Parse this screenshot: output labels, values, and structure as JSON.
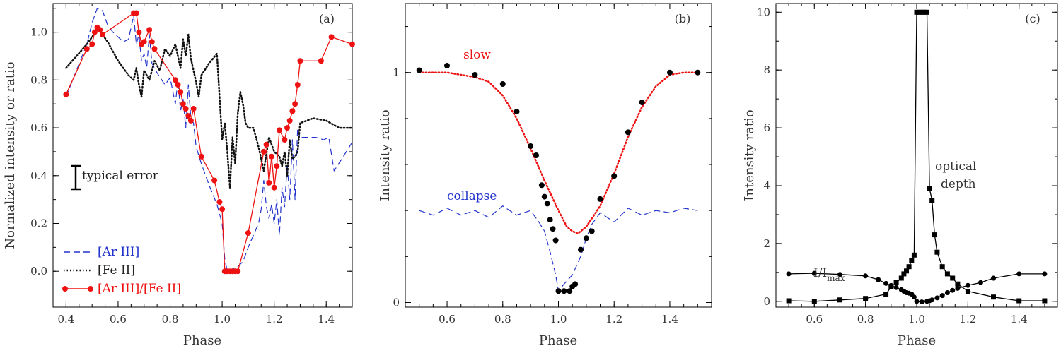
{
  "chart_data": [
    {
      "panel": "(a)",
      "type": "line",
      "xlabel": "Phase",
      "ylabel": "Normalized intensity or ratio",
      "xlim": [
        0.35,
        1.5
      ],
      "ylim": [
        -0.15,
        1.12
      ],
      "xticks": [
        0.4,
        0.6,
        0.8,
        1.0,
        1.2,
        1.4
      ],
      "xtick_labels": [
        "0.4",
        "0.6",
        "0.8",
        "1.0",
        "1.2",
        "1.4"
      ],
      "yticks": [
        0.0,
        0.2,
        0.4,
        0.6,
        0.8,
        1.0
      ],
      "ytick_labels": [
        "0.0",
        "0.2",
        "0.4",
        "0.6",
        "0.8",
        "1.0"
      ],
      "annotation": "typical error",
      "error_bar": {
        "x": 0.44,
        "y": 0.4,
        "half_height": 0.045
      },
      "legend_position": "bottom-left",
      "series": [
        {
          "name": "[Ar III]",
          "style": "dashed",
          "color": "#2233cc",
          "x": [
            0.4,
            0.44,
            0.48,
            0.5,
            0.52,
            0.54,
            0.56,
            0.58,
            0.6,
            0.62,
            0.64,
            0.66,
            0.67,
            0.68,
            0.69,
            0.7,
            0.71,
            0.72,
            0.73,
            0.75,
            0.78,
            0.8,
            0.82,
            0.83,
            0.84,
            0.85,
            0.86,
            0.87,
            0.88,
            0.89,
            0.9,
            0.92,
            0.95,
            0.98,
            1.0,
            1.01,
            1.02,
            1.04,
            1.06,
            1.08,
            1.1,
            1.12,
            1.14,
            1.15,
            1.16,
            1.17,
            1.18,
            1.19,
            1.2,
            1.21,
            1.22,
            1.23,
            1.24,
            1.25,
            1.26,
            1.27,
            1.28,
            1.29,
            1.3,
            1.33,
            1.36,
            1.39,
            1.41,
            1.43,
            1.46,
            1.5
          ],
          "y": [
            0.73,
            0.84,
            0.95,
            1.04,
            1.1,
            1.09,
            1.03,
            1.0,
            0.98,
            0.96,
            0.97,
            1.07,
            0.95,
            0.99,
            0.88,
            0.91,
            0.85,
            0.99,
            0.87,
            0.83,
            0.78,
            0.81,
            0.7,
            0.8,
            0.67,
            0.72,
            0.6,
            0.78,
            0.64,
            0.62,
            0.52,
            0.45,
            0.36,
            0.28,
            0.2,
            0.05,
            0.0,
            0.01,
            0.02,
            0.04,
            0.1,
            0.15,
            0.2,
            0.26,
            0.38,
            0.27,
            0.22,
            0.28,
            0.2,
            0.3,
            0.15,
            0.35,
            0.27,
            0.45,
            0.3,
            0.55,
            0.3,
            0.6,
            0.56,
            0.56,
            0.56,
            0.55,
            0.56,
            0.42,
            0.47,
            0.54
          ]
        },
        {
          "name": "[Fe II]",
          "style": "dotted",
          "color": "#111111",
          "x": [
            0.4,
            0.44,
            0.48,
            0.5,
            0.52,
            0.54,
            0.56,
            0.58,
            0.6,
            0.62,
            0.64,
            0.66,
            0.67,
            0.68,
            0.69,
            0.7,
            0.72,
            0.74,
            0.76,
            0.78,
            0.8,
            0.82,
            0.84,
            0.85,
            0.86,
            0.87,
            0.88,
            0.89,
            0.9,
            0.91,
            0.92,
            0.95,
            0.98,
            1.0,
            1.01,
            1.02,
            1.03,
            1.04,
            1.05,
            1.06,
            1.07,
            1.08,
            1.09,
            1.1,
            1.12,
            1.14,
            1.16,
            1.18,
            1.2,
            1.22,
            1.23,
            1.24,
            1.25,
            1.26,
            1.27,
            1.28,
            1.29,
            1.3,
            1.35,
            1.4,
            1.45,
            1.5
          ],
          "y": [
            0.85,
            0.9,
            0.95,
            0.98,
            1.01,
            0.99,
            0.96,
            0.92,
            0.88,
            0.85,
            0.82,
            0.8,
            0.85,
            0.78,
            0.73,
            0.84,
            0.8,
            0.88,
            0.84,
            0.93,
            0.9,
            0.95,
            0.85,
            0.97,
            0.9,
            0.99,
            0.89,
            0.84,
            0.79,
            0.73,
            0.82,
            0.87,
            0.91,
            0.55,
            0.62,
            0.5,
            0.35,
            0.56,
            0.45,
            0.66,
            0.75,
            0.7,
            0.62,
            0.6,
            0.6,
            0.52,
            0.42,
            0.56,
            0.5,
            0.48,
            0.44,
            0.5,
            0.4,
            0.55,
            0.47,
            0.48,
            0.5,
            0.62,
            0.64,
            0.63,
            0.6,
            0.6
          ]
        },
        {
          "name": "[Ar III]/[Fe II]",
          "style": "solid-circles",
          "color": "#ee1111",
          "x": [
            0.4,
            0.48,
            0.5,
            0.51,
            0.52,
            0.53,
            0.54,
            0.66,
            0.67,
            0.68,
            0.69,
            0.7,
            0.72,
            0.73,
            0.74,
            0.82,
            0.83,
            0.84,
            0.85,
            0.86,
            0.87,
            0.88,
            0.89,
            0.92,
            0.97,
            0.99,
            1.0,
            1.01,
            1.02,
            1.03,
            1.04,
            1.05,
            1.06,
            1.1,
            1.16,
            1.17,
            1.18,
            1.19,
            1.2,
            1.21,
            1.22,
            1.24,
            1.25,
            1.26,
            1.27,
            1.28,
            1.29,
            1.3,
            1.38,
            1.42,
            1.5
          ],
          "y": [
            0.74,
            0.93,
            0.95,
            1.0,
            1.02,
            1.01,
            0.99,
            1.08,
            1.08,
            1.0,
            0.95,
            0.96,
            1.01,
            0.96,
            0.93,
            0.8,
            0.78,
            0.75,
            0.7,
            0.68,
            0.65,
            0.63,
            0.68,
            0.48,
            0.38,
            0.29,
            0.26,
            0.0,
            0.0,
            0.0,
            0.0,
            0.0,
            0.0,
            0.16,
            0.5,
            0.53,
            0.37,
            0.48,
            0.35,
            0.44,
            0.59,
            0.55,
            0.6,
            0.63,
            0.67,
            0.7,
            0.78,
            0.88,
            0.88,
            0.98,
            0.95
          ]
        }
      ]
    },
    {
      "panel": "(b)",
      "type": "line",
      "xlabel": "Phase",
      "ylabel": "Intensity ratio",
      "xlim": [
        0.45,
        1.55
      ],
      "ylim": [
        -0.02,
        1.3
      ],
      "xticks": [
        0.6,
        0.8,
        1.0,
        1.2,
        1.4
      ],
      "xtick_labels": [
        "0.6",
        "0.8",
        "1.0",
        "1.2",
        "1.4"
      ],
      "yticks": [
        0,
        1
      ],
      "ytick_labels": [
        "0",
        "1"
      ],
      "series": [
        {
          "name": "slow",
          "style": "dotted",
          "color": "#ee1111",
          "x": [
            0.5,
            0.55,
            0.6,
            0.65,
            0.7,
            0.75,
            0.8,
            0.85,
            0.9,
            0.95,
            1.0,
            1.03,
            1.05,
            1.07,
            1.1,
            1.15,
            1.2,
            1.25,
            1.3,
            1.35,
            1.4,
            1.45,
            1.5
          ],
          "y": [
            1.0,
            1.0,
            1.0,
            0.99,
            0.98,
            0.96,
            0.9,
            0.8,
            0.67,
            0.53,
            0.4,
            0.33,
            0.31,
            0.3,
            0.33,
            0.42,
            0.56,
            0.72,
            0.85,
            0.94,
            0.99,
            1.0,
            1.0
          ]
        },
        {
          "name": "collapse",
          "style": "dashed",
          "color": "#2233cc",
          "x": [
            0.5,
            0.55,
            0.6,
            0.65,
            0.7,
            0.75,
            0.8,
            0.85,
            0.9,
            0.93,
            0.95,
            0.97,
            0.99,
            1.0,
            1.02,
            1.05,
            1.08,
            1.1,
            1.12,
            1.15,
            1.2,
            1.25,
            1.3,
            1.35,
            1.4,
            1.45,
            1.5
          ],
          "y": [
            0.4,
            0.38,
            0.41,
            0.38,
            0.4,
            0.37,
            0.42,
            0.38,
            0.4,
            0.35,
            0.31,
            0.22,
            0.12,
            0.05,
            0.08,
            0.12,
            0.2,
            0.28,
            0.34,
            0.39,
            0.35,
            0.41,
            0.38,
            0.4,
            0.39,
            0.41,
            0.4
          ]
        },
        {
          "name": "",
          "style": "markers",
          "color": "#000000",
          "x": [
            0.5,
            0.6,
            0.7,
            0.8,
            0.85,
            0.9,
            0.92,
            0.94,
            0.95,
            0.96,
            0.97,
            0.98,
            0.99,
            1.0,
            1.02,
            1.04,
            1.05,
            1.06,
            1.08,
            1.1,
            1.12,
            1.15,
            1.2,
            1.25,
            1.3,
            1.4,
            1.5
          ],
          "y": [
            1.01,
            1.03,
            0.99,
            0.95,
            0.83,
            0.68,
            0.64,
            0.51,
            0.46,
            0.43,
            0.36,
            0.32,
            0.27,
            0.05,
            0.05,
            0.05,
            0.07,
            0.08,
            0.23,
            0.28,
            0.31,
            0.45,
            0.55,
            0.74,
            0.87,
            1.0,
            1.0
          ]
        }
      ]
    },
    {
      "panel": "(c)",
      "type": "line",
      "xlabel": "Phase",
      "ylabel": "Intensity ratio",
      "xlim": [
        0.45,
        1.55
      ],
      "ylim": [
        -0.2,
        10.3
      ],
      "xticks": [
        0.6,
        0.8,
        1.0,
        1.2,
        1.4
      ],
      "xtick_labels": [
        "0.6",
        "0.8",
        "1.0",
        "1.2",
        "1.4"
      ],
      "yticks": [
        0,
        2,
        4,
        6,
        8,
        10
      ],
      "ytick_labels": [
        "0",
        "2",
        "4",
        "6",
        "8",
        "10"
      ],
      "series": [
        {
          "name": "I/I",
          "name_subscript": "max",
          "style": "line-circles",
          "color": "#000000",
          "x": [
            0.5,
            0.6,
            0.7,
            0.8,
            0.85,
            0.88,
            0.9,
            0.92,
            0.94,
            0.95,
            0.96,
            0.97,
            0.98,
            0.99,
            1.0,
            1.02,
            1.04,
            1.05,
            1.06,
            1.08,
            1.1,
            1.12,
            1.14,
            1.16,
            1.2,
            1.25,
            1.3,
            1.4,
            1.5
          ],
          "y": [
            0.95,
            0.97,
            0.93,
            0.88,
            0.75,
            0.62,
            0.55,
            0.48,
            0.4,
            0.35,
            0.3,
            0.28,
            0.25,
            0.15,
            0.0,
            -0.02,
            0.0,
            0.02,
            0.05,
            0.12,
            0.2,
            0.3,
            0.38,
            0.45,
            0.55,
            0.65,
            0.8,
            0.95,
            0.95
          ]
        },
        {
          "name": "optical depth",
          "style": "line-squares",
          "color": "#000000",
          "x": [
            0.5,
            0.6,
            0.7,
            0.8,
            0.88,
            0.9,
            0.92,
            0.94,
            0.95,
            0.96,
            0.97,
            0.98,
            0.99,
            1.0,
            1.01,
            1.02,
            1.03,
            1.04,
            1.05,
            1.06,
            1.07,
            1.08,
            1.1,
            1.12,
            1.14,
            1.16,
            1.2,
            1.3,
            1.4,
            1.5
          ],
          "y": [
            0.02,
            0.0,
            0.05,
            0.1,
            0.25,
            0.5,
            0.65,
            0.8,
            0.95,
            1.05,
            1.2,
            1.4,
            1.6,
            10.0,
            10.0,
            10.0,
            10.0,
            10.0,
            3.9,
            3.5,
            2.3,
            1.7,
            1.2,
            0.95,
            0.8,
            0.6,
            0.35,
            0.15,
            0.02,
            0.02
          ]
        }
      ]
    }
  ],
  "labels": {
    "panel_a": "(a)",
    "panel_b": "(b)",
    "panel_c": "(c)",
    "typical_error": "typical error",
    "slow": "slow",
    "collapse": "collapse",
    "optical": "optical",
    "depth": "depth",
    "i_over": "I/I",
    "i_sub": "max",
    "legend_ar": "[Ar III]",
    "legend_fe": "[Fe II]",
    "legend_ratio": "[Ar III]/[Fe II]"
  }
}
